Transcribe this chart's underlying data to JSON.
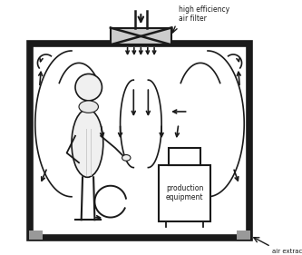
{
  "bg_color": "#ffffff",
  "black": "#1a1a1a",
  "gray": "#999999",
  "light_gray": "#cccccc",
  "filter_label": "high efficiency\nair filter",
  "extract_label": "air extract",
  "equip_label": "production\nequipment",
  "lw_wall": 5.5,
  "lw_arrow": 1.2,
  "lw_filter": 1.5
}
